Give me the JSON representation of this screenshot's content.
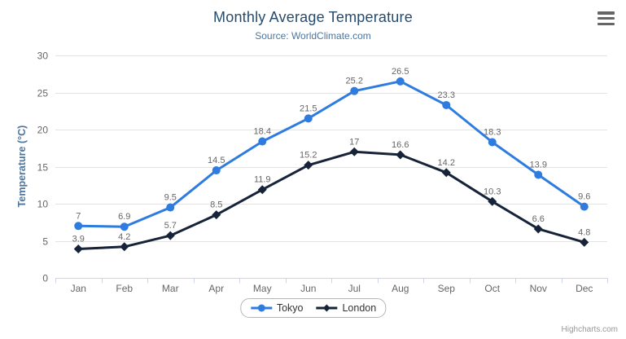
{
  "chart_data": {
    "type": "line",
    "title": "Monthly Average Temperature",
    "subtitle": "Source: WorldClimate.com",
    "xlabel": "",
    "ylabel": "Temperature (°C)",
    "ylim": [
      0,
      30
    ],
    "yticks": [
      0,
      5,
      10,
      15,
      20,
      25,
      30
    ],
    "grid": true,
    "legend_position": "bottom",
    "categories": [
      "Jan",
      "Feb",
      "Mar",
      "Apr",
      "May",
      "Jun",
      "Jul",
      "Aug",
      "Sep",
      "Oct",
      "Nov",
      "Dec"
    ],
    "series": [
      {
        "name": "Tokyo",
        "marker": "circle",
        "color": "#2e7ce0",
        "values": [
          7,
          6.9,
          9.5,
          14.5,
          18.4,
          21.5,
          25.2,
          26.5,
          23.3,
          18.3,
          13.9,
          9.6
        ]
      },
      {
        "name": "London",
        "marker": "diamond",
        "color": "#162338",
        "values": [
          3.9,
          4.2,
          5.7,
          8.5,
          11.9,
          15.2,
          17,
          16.6,
          14.2,
          10.3,
          6.6,
          4.8
        ]
      }
    ]
  },
  "credits": {
    "label": "Highcharts.com"
  },
  "icons": {
    "context_menu": "hamburger-icon"
  },
  "colors": {
    "title": "#274b6d",
    "subtitle": "#4d759e",
    "axis_title": "#4d759e",
    "axis_labels": "#666666",
    "data_labels": "#666666",
    "gridline": "#e3e3e3",
    "axis_line": "#ccd6eb",
    "legend_border": "#b6b6b6",
    "legend_text": "#333333",
    "credits": "#999999",
    "menu_icon": "#666666",
    "background": "#ffffff"
  }
}
